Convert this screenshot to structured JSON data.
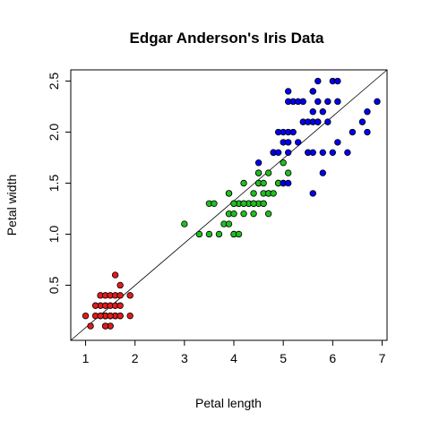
{
  "chart_data": {
    "type": "scatter",
    "title": "Edgar Anderson's Iris Data",
    "xlabel": "Petal length",
    "ylabel": "Petal width",
    "xlim": [
      0.7,
      7.1
    ],
    "ylim": [
      -0.04,
      2.61
    ],
    "xticks": [
      1,
      2,
      3,
      4,
      5,
      6,
      7
    ],
    "yticks": [
      0.5,
      1.0,
      1.5,
      2.0,
      2.5
    ],
    "xtick_labels": [
      "1",
      "2",
      "3",
      "4",
      "5",
      "6",
      "7"
    ],
    "ytick_labels": [
      "0.5",
      "1.0",
      "1.5",
      "2.0",
      "2.5"
    ],
    "grid": false,
    "reference_line": {
      "type": "y=x-b fit",
      "points": [
        [
          0.7,
          -0.04
        ],
        [
          7.1,
          2.61
        ]
      ]
    },
    "series": [
      {
        "color": "#e41a1c",
        "x": [
          1.0,
          1.1,
          1.2,
          1.3,
          1.3,
          1.3,
          1.4,
          1.4,
          1.4,
          1.4,
          1.4,
          1.4,
          1.5,
          1.5,
          1.5,
          1.5,
          1.5,
          1.5,
          1.6,
          1.6,
          1.6,
          1.6,
          1.6,
          1.6,
          1.7,
          1.7,
          1.7,
          1.7,
          1.7,
          1.9,
          1.9,
          1.2,
          1.4,
          1.5,
          1.3,
          1.4
        ],
        "y": [
          0.2,
          0.1,
          0.2,
          0.2,
          0.3,
          0.4,
          0.1,
          0.2,
          0.3,
          0.2,
          0.4,
          0.2,
          0.2,
          0.1,
          0.4,
          0.3,
          0.2,
          0.1,
          0.2,
          0.4,
          0.6,
          0.2,
          0.2,
          0.3,
          0.2,
          0.4,
          0.5,
          0.3,
          0.2,
          0.2,
          0.4,
          0.3,
          0.2,
          0.2,
          0.2,
          0.1
        ]
      },
      {
        "color": "#1fbf1f",
        "x": [
          3.0,
          3.3,
          3.5,
          3.5,
          3.6,
          3.7,
          3.8,
          3.9,
          3.9,
          3.9,
          4.0,
          4.0,
          4.0,
          4.0,
          4.0,
          4.1,
          4.1,
          4.1,
          4.2,
          4.2,
          4.2,
          4.3,
          4.3,
          4.4,
          4.4,
          4.4,
          4.5,
          4.5,
          4.5,
          4.5,
          4.5,
          4.6,
          4.6,
          4.6,
          4.7,
          4.7,
          4.7,
          4.7,
          4.8,
          4.8,
          4.9,
          4.9,
          5.0,
          5.1,
          4.4,
          4.2,
          4.0,
          3.9,
          4.6
        ],
        "y": [
          1.1,
          1.0,
          1.0,
          1.3,
          1.3,
          1.0,
          1.1,
          1.1,
          1.2,
          1.4,
          1.0,
          1.2,
          1.3,
          1.0,
          1.3,
          1.0,
          1.3,
          1.3,
          1.2,
          1.3,
          1.5,
          1.3,
          1.3,
          1.2,
          1.3,
          1.4,
          1.3,
          1.5,
          1.5,
          1.6,
          1.6,
          1.3,
          1.4,
          1.5,
          1.2,
          1.4,
          1.4,
          1.6,
          1.4,
          1.8,
          1.5,
          1.5,
          1.7,
          1.6,
          1.3,
          1.3,
          1.3,
          1.4,
          1.3
        ]
      },
      {
        "color": "#0000ee",
        "x": [
          4.5,
          4.8,
          4.8,
          4.9,
          4.9,
          5.0,
          5.0,
          5.0,
          5.0,
          5.1,
          5.1,
          5.1,
          5.1,
          5.1,
          5.1,
          5.2,
          5.2,
          5.3,
          5.3,
          5.4,
          5.4,
          5.5,
          5.5,
          5.5,
          5.6,
          5.6,
          5.6,
          5.6,
          5.6,
          5.7,
          5.7,
          5.7,
          5.8,
          5.8,
          5.8,
          5.9,
          5.9,
          6.0,
          6.0,
          6.1,
          6.1,
          6.1,
          6.3,
          6.4,
          6.6,
          6.7,
          6.7,
          6.9,
          5.6,
          5.7
        ],
        "y": [
          1.7,
          1.8,
          1.8,
          1.8,
          2.0,
          1.5,
          1.9,
          2.0,
          1.5,
          1.5,
          1.8,
          1.9,
          2.0,
          2.3,
          2.4,
          2.0,
          2.3,
          1.9,
          2.3,
          2.1,
          2.3,
          1.8,
          1.8,
          2.1,
          1.4,
          2.1,
          2.2,
          2.4,
          1.8,
          2.1,
          2.3,
          2.5,
          1.6,
          2.2,
          1.8,
          2.1,
          2.3,
          1.8,
          2.5,
          1.9,
          2.3,
          2.5,
          1.8,
          2.0,
          2.1,
          2.2,
          2.0,
          2.3,
          2.4,
          2.1
        ]
      }
    ]
  }
}
